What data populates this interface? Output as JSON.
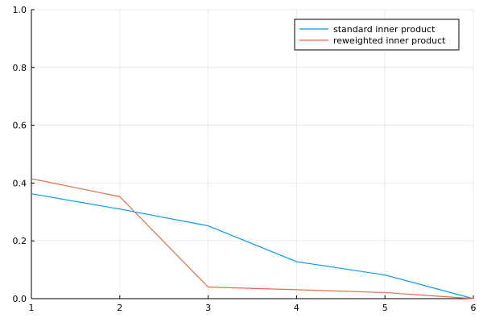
{
  "chart_data": {
    "type": "line",
    "title": "",
    "xlabel": "",
    "ylabel": "",
    "x": [
      1,
      2,
      3,
      4,
      5,
      6
    ],
    "xlim": [
      1,
      6
    ],
    "ylim": [
      0,
      1
    ],
    "xticks": [
      1,
      2,
      3,
      4,
      5,
      6
    ],
    "yticks": [
      0.0,
      0.2,
      0.4,
      0.6,
      0.8,
      1.0
    ],
    "xtick_labels": [
      "1",
      "2",
      "3",
      "4",
      "5",
      "6"
    ],
    "ytick_labels": [
      "0.0",
      "0.2",
      "0.4",
      "0.6",
      "0.8",
      "1.0"
    ],
    "grid": true,
    "legend_position": "top-right",
    "series": [
      {
        "name": "standard inner product",
        "color": "#009AFA",
        "values": [
          0.363,
          0.31,
          0.252,
          0.128,
          0.082,
          0.0
        ]
      },
      {
        "name": "reweighted inner product",
        "color": "#E26F46",
        "values": [
          0.415,
          0.353,
          0.04,
          0.031,
          0.021,
          0.0
        ]
      }
    ]
  }
}
